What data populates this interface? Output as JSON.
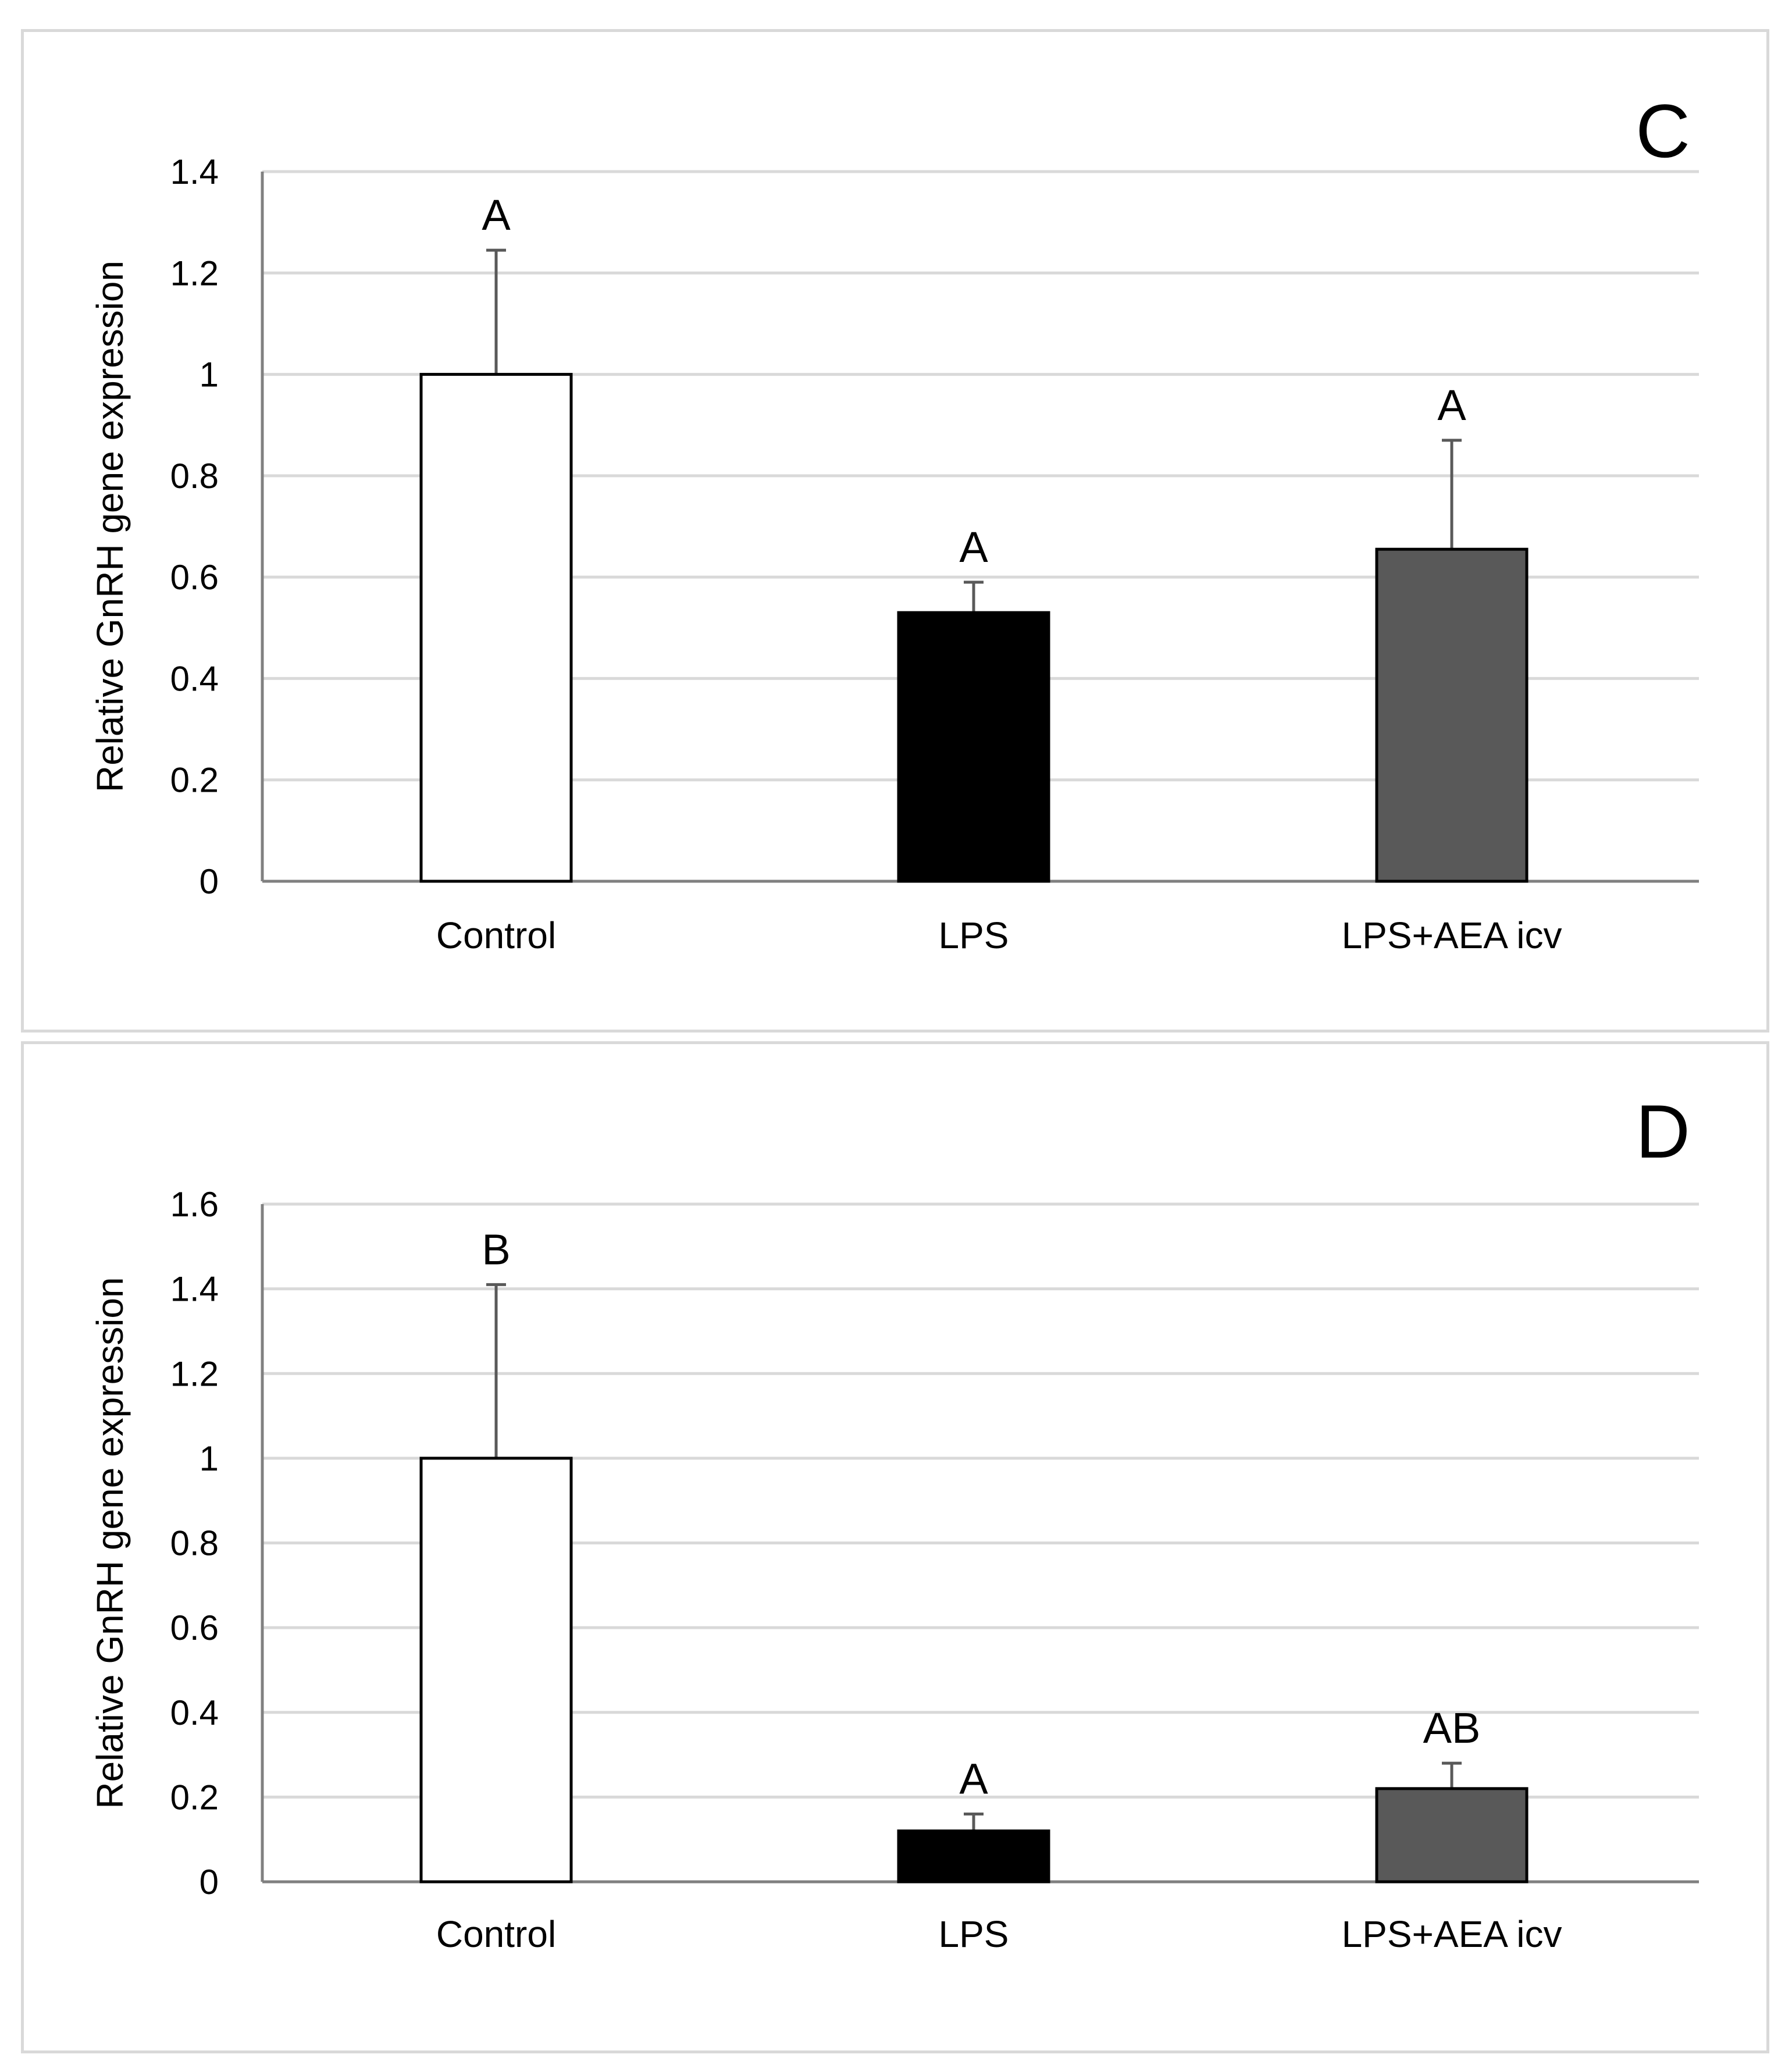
{
  "chart_data": [
    {
      "type": "bar",
      "panel_label": "C",
      "categories": [
        "Control",
        "LPS",
        "LPS+AEA icv"
      ],
      "values": [
        1.0,
        0.53,
        0.655
      ],
      "error_bars": [
        0.245,
        0.06,
        0.215
      ],
      "annotations": [
        "A",
        "A",
        "A"
      ],
      "bar_colors": [
        "#ffffff",
        "#000000",
        "#595959"
      ],
      "ylabel": "Relative GnRH gene expression",
      "ylim": [
        0,
        1.4
      ],
      "yticks": [
        0,
        0.2,
        0.4,
        0.6,
        0.8,
        1,
        1.2,
        1.4
      ],
      "ytick_labels": [
        "0",
        "0.2",
        "0.4",
        "0.6",
        "0.8",
        "1",
        "1.2",
        "1.4"
      ],
      "grid": true
    },
    {
      "type": "bar",
      "panel_label": "D",
      "categories": [
        "Control",
        "LPS",
        "LPS+AEA icv"
      ],
      "values": [
        1.0,
        0.12,
        0.22
      ],
      "error_bars": [
        0.41,
        0.04,
        0.06
      ],
      "annotations": [
        "B",
        "A",
        "AB"
      ],
      "bar_colors": [
        "#ffffff",
        "#000000",
        "#595959"
      ],
      "ylabel": "Relative GnRH gene expression",
      "ylim": [
        0,
        1.6
      ],
      "yticks": [
        0,
        0.2,
        0.4,
        0.6,
        0.8,
        1,
        1.2,
        1.4,
        1.6
      ],
      "ytick_labels": [
        "0",
        "0.2",
        "0.4",
        "0.6",
        "0.8",
        "1",
        "1.2",
        "1.4",
        "1.6"
      ],
      "grid": true
    }
  ]
}
